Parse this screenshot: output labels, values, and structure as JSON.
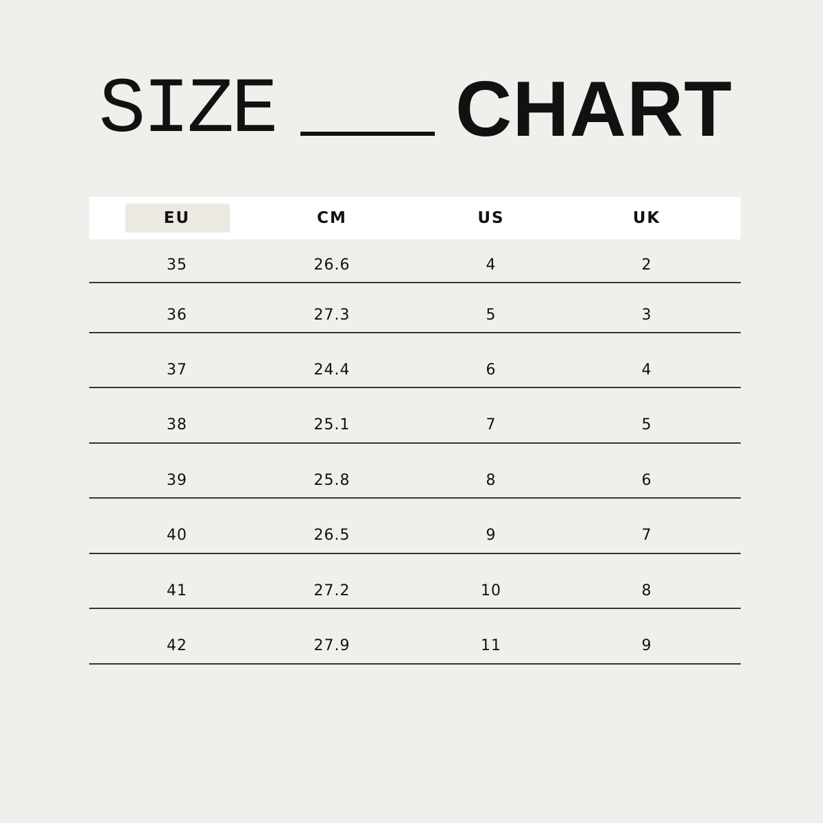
{
  "title": {
    "left": "SIZE",
    "right": "CHART"
  },
  "chart_data": {
    "type": "table",
    "title": "SIZE CHART",
    "columns": [
      "EU",
      "CM",
      "US",
      "UK"
    ],
    "highlighted_column": "EU",
    "rows": [
      [
        "35",
        "26.6",
        "4",
        "2"
      ],
      [
        "36",
        "27.3",
        "5",
        "3"
      ],
      [
        "37",
        "24.4",
        "6",
        "4"
      ],
      [
        "38",
        "25.1",
        "7",
        "5"
      ],
      [
        "39",
        "25.8",
        "8",
        "6"
      ],
      [
        "40",
        "26.5",
        "9",
        "7"
      ],
      [
        "41",
        "27.2",
        "10",
        "8"
      ],
      [
        "42",
        "27.9",
        "11",
        "9"
      ]
    ]
  },
  "colors": {
    "background": "#f0efeb",
    "header": "#ffffff",
    "highlight": "#ece9e3",
    "text": "#111111"
  }
}
